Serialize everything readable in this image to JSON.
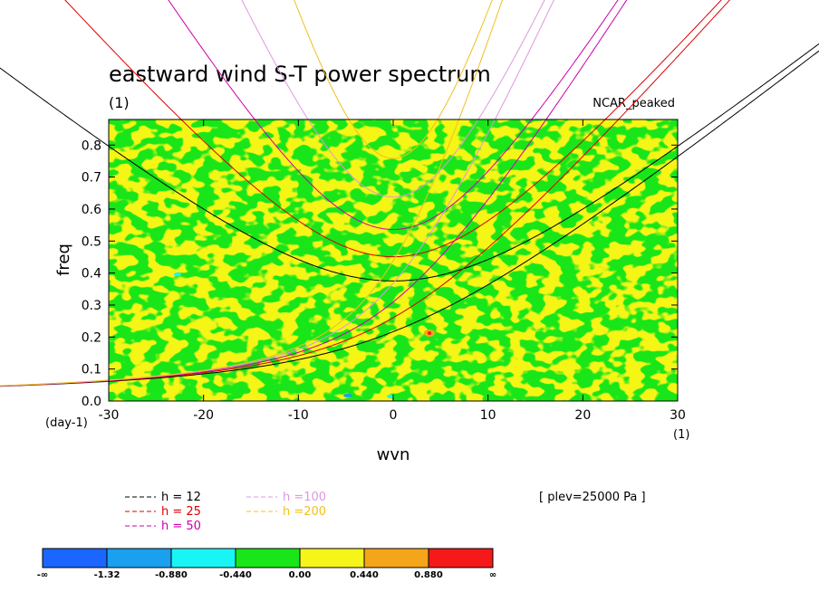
{
  "chart_data": {
    "type": "heatmap",
    "title": "eastward wind S-T power spectrum",
    "subtitle_left": "(1)",
    "subtitle_right": "NCAR_peaked",
    "xlabel": "wvn",
    "ylabel": "freq",
    "y_unit": "(day-1)",
    "x_unit": "(1)",
    "xlim": [
      -30,
      30
    ],
    "ylim": [
      0,
      0.88
    ],
    "xticks": [
      -30,
      -20,
      -10,
      0,
      10,
      20,
      30
    ],
    "yticks": [
      0,
      0.1,
      0.2,
      0.3,
      0.4,
      0.5,
      0.6,
      0.7,
      0.8
    ],
    "ytick_labels": [
      "0.0",
      "0.1",
      "0.2",
      "0.3",
      "0.4",
      "0.5",
      "0.6",
      "0.7",
      "0.8"
    ],
    "annotation": "[ plev=25000 Pa ]",
    "colorbar": {
      "colors": [
        "#1a66ff",
        "#1aa0ee",
        "#19f5f5",
        "#19e619",
        "#f5f519",
        "#f5a519",
        "#f51919"
      ],
      "labels": [
        "-∞",
        "-1.32",
        "-0.880",
        "-0.440",
        "0.00",
        "0.440",
        "0.880",
        "∞"
      ]
    },
    "dispersion_curves": [
      {
        "name": "h = 12",
        "color": "#000000",
        "equivalent_depth": 12
      },
      {
        "name": "h = 25",
        "color": "#dd0000",
        "equivalent_depth": 25
      },
      {
        "name": "h = 50",
        "color": "#cc00aa",
        "equivalent_depth": 50
      },
      {
        "name": "h =100",
        "color": "#dd99dd",
        "equivalent_depth": 100
      },
      {
        "name": "h =200",
        "color": "#f0c020",
        "equivalent_depth": 200
      }
    ]
  }
}
